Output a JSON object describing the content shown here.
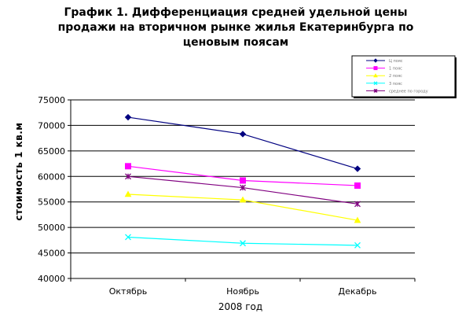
{
  "chart_data": {
    "type": "line",
    "title": [
      "График 1.  Дифференциация средней удельной цены",
      "продажи на вторичном рынке жилья Екатеринбурга по",
      "ценовым поясам"
    ],
    "xlabel": "2008 год",
    "ylabel": "стоимость 1 кв.м",
    "categories": [
      "Октябрь",
      "Ноябрь",
      "Декабрь"
    ],
    "ylim": [
      40000,
      75000
    ],
    "yticks": [
      40000,
      45000,
      50000,
      55000,
      60000,
      65000,
      70000,
      75000
    ],
    "grid": true,
    "legend_position": "top-right",
    "series": [
      {
        "name": "Ц пояс",
        "values": [
          71600,
          68300,
          61500
        ],
        "color": "#000080",
        "marker": "diamond"
      },
      {
        "name": "1 пояс",
        "values": [
          62000,
          59200,
          58200
        ],
        "color": "#ff00ff",
        "marker": "square"
      },
      {
        "name": "2 пояс",
        "values": [
          56500,
          55400,
          51400
        ],
        "color": "#ffff00",
        "marker": "triangle"
      },
      {
        "name": "3 пояс",
        "values": [
          48100,
          46900,
          46500
        ],
        "color": "#00ffff",
        "marker": "x"
      },
      {
        "name": "среднее по городу",
        "values": [
          60000,
          57800,
          54600
        ],
        "color": "#800080",
        "marker": "star"
      }
    ]
  }
}
